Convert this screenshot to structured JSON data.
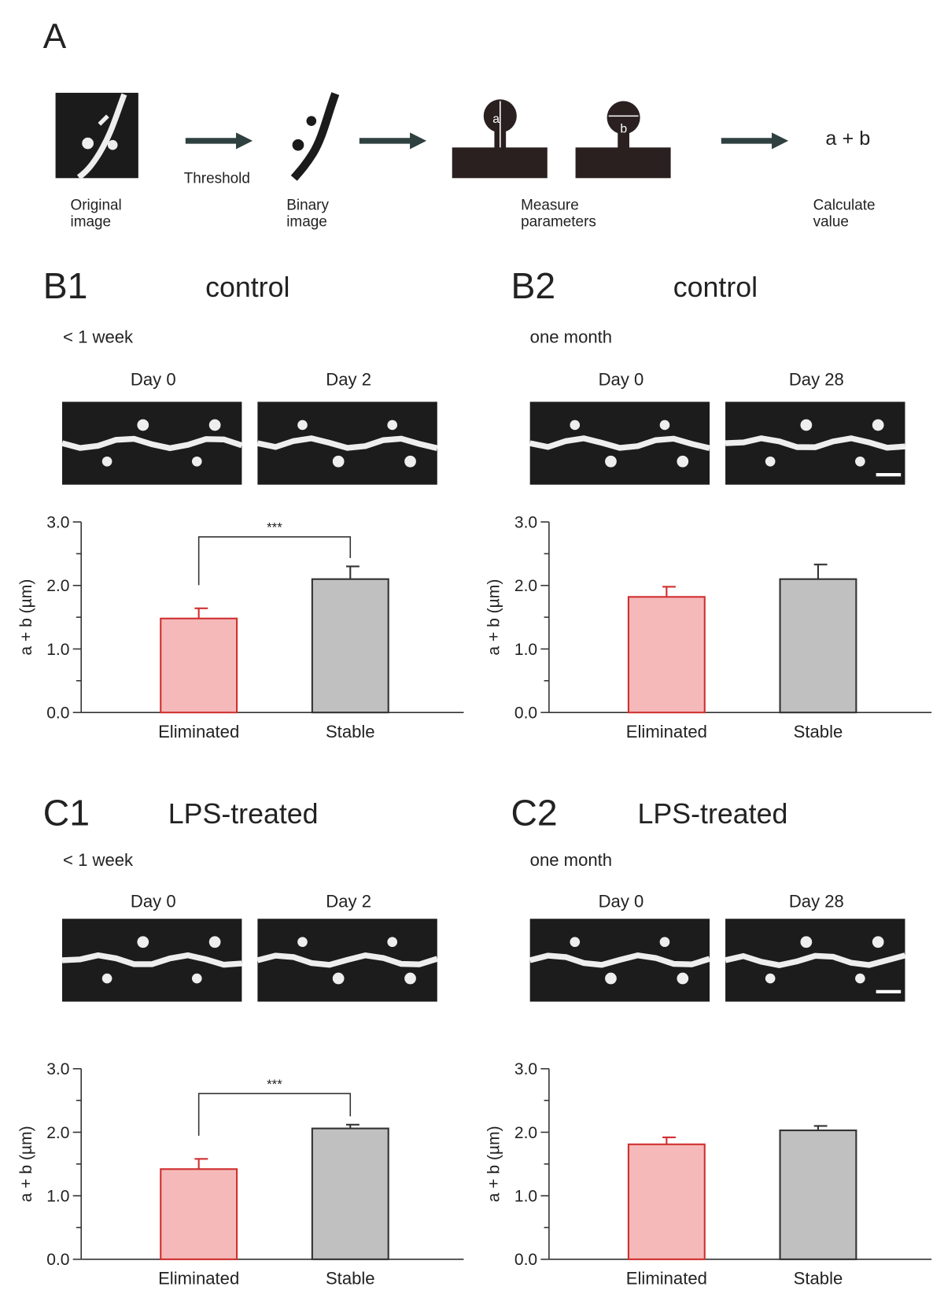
{
  "panel_a": {
    "letter": "A",
    "steps": [
      [
        "Original",
        "image"
      ],
      [
        "Binary",
        "image"
      ],
      [
        "Measure",
        "parameters"
      ],
      [
        "Calculate",
        "value"
      ]
    ],
    "arrow_label": "Threshold",
    "param_a": "a",
    "param_b": "b",
    "result": "a + b"
  },
  "chart_data": [
    {
      "type": "bar",
      "panel": "B1",
      "title": "control",
      "subtitle": "< 1 week",
      "image_labels": [
        "Day 0",
        "Day 2"
      ],
      "ylabel": "a + b (µm)",
      "categories": [
        "Eliminated",
        "Stable"
      ],
      "values": [
        1.48,
        2.1
      ],
      "errors": [
        0.16,
        0.2
      ],
      "colors": [
        "#f5b9b9",
        "#c0c0c0"
      ],
      "edgecolors": [
        "#d03030",
        "#333333"
      ],
      "ylim": [
        0,
        3
      ],
      "yticks": [
        {
          "value": 0,
          "label": "0.0"
        },
        {
          "value": 1,
          "label": "1.0"
        },
        {
          "value": 2,
          "label": "2.0"
        },
        {
          "value": 3,
          "label": "3.0"
        }
      ],
      "minor_yticks": [
        0.5,
        1.5,
        2.5
      ],
      "significance": "***"
    },
    {
      "type": "bar",
      "panel": "B2",
      "title": "control",
      "subtitle": "one month",
      "image_labels": [
        "Day 0",
        "Day 28"
      ],
      "ylabel": "a + b (µm)",
      "categories": [
        "Eliminated",
        "Stable"
      ],
      "values": [
        1.82,
        2.1
      ],
      "errors": [
        0.16,
        0.23
      ],
      "colors": [
        "#f5b9b9",
        "#c0c0c0"
      ],
      "edgecolors": [
        "#d03030",
        "#333333"
      ],
      "ylim": [
        0,
        3
      ],
      "yticks": [
        {
          "value": 0,
          "label": "0.0"
        },
        {
          "value": 1,
          "label": "1.0"
        },
        {
          "value": 2,
          "label": "2.0"
        },
        {
          "value": 3,
          "label": "3.0"
        }
      ],
      "minor_yticks": [
        0.5,
        1.5,
        2.5
      ]
    },
    {
      "type": "bar",
      "panel": "C1",
      "title": "LPS-treated",
      "subtitle": "< 1 week",
      "image_labels": [
        "Day 0",
        "Day 2"
      ],
      "ylabel": "a + b (µm)",
      "categories": [
        "Eliminated",
        "Stable"
      ],
      "values": [
        1.42,
        2.06
      ],
      "errors": [
        0.16,
        0.06
      ],
      "colors": [
        "#f5b9b9",
        "#c0c0c0"
      ],
      "edgecolors": [
        "#d03030",
        "#333333"
      ],
      "ylim": [
        0,
        3
      ],
      "yticks": [
        {
          "value": 0,
          "label": "0.0"
        },
        {
          "value": 1,
          "label": "1.0"
        },
        {
          "value": 2,
          "label": "2.0"
        },
        {
          "value": 3,
          "label": "3.0"
        }
      ],
      "minor_yticks": [
        0.5,
        1.5,
        2.5
      ],
      "significance": "***"
    },
    {
      "type": "bar",
      "panel": "C2",
      "title": "LPS-treated",
      "subtitle": "one month",
      "image_labels": [
        "Day 0",
        "Day 28"
      ],
      "ylabel": "a + b (µm)",
      "categories": [
        "Eliminated",
        "Stable"
      ],
      "values": [
        1.81,
        2.03
      ],
      "errors": [
        0.11,
        0.07
      ],
      "colors": [
        "#f5b9b9",
        "#c0c0c0"
      ],
      "edgecolors": [
        "#d03030",
        "#333333"
      ],
      "ylim": [
        0,
        3
      ],
      "yticks": [
        {
          "value": 0,
          "label": "0.0"
        },
        {
          "value": 1,
          "label": "1.0"
        },
        {
          "value": 2,
          "label": "2.0"
        },
        {
          "value": 3,
          "label": "3.0"
        }
      ],
      "minor_yticks": [
        0.5,
        1.5,
        2.5
      ]
    }
  ]
}
